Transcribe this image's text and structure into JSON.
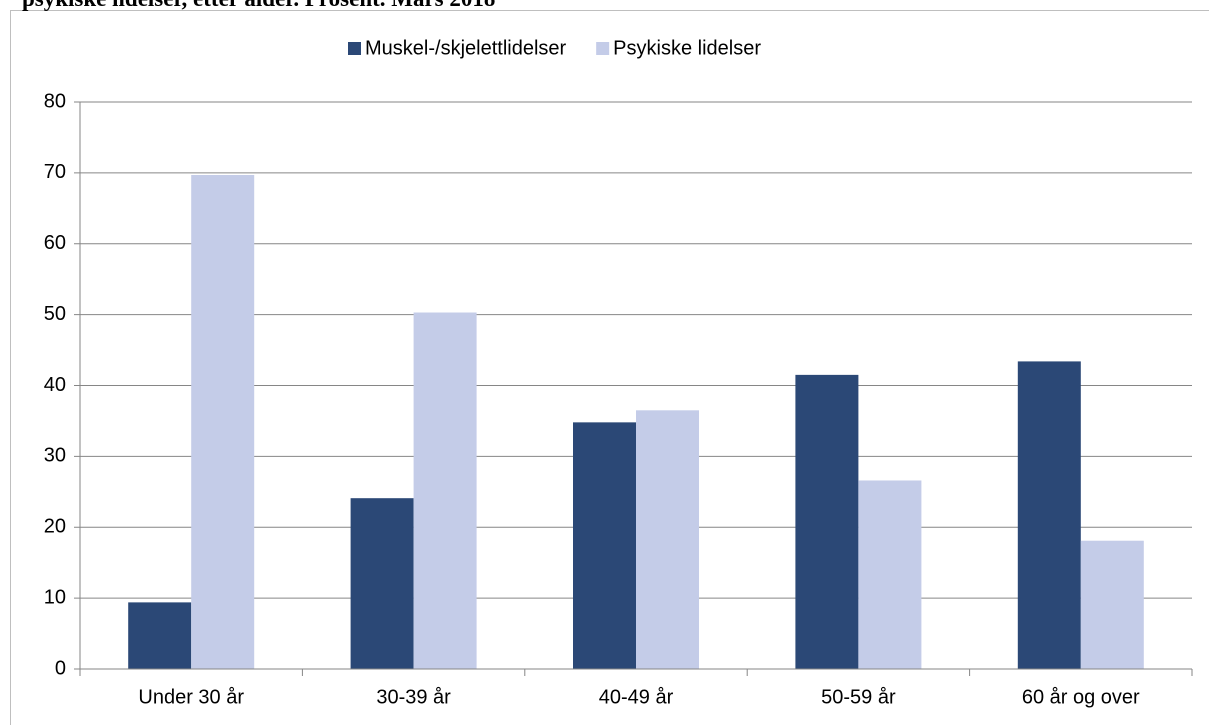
{
  "chart_data": {
    "type": "bar",
    "title": "psykiske lidelser, etter alder. Prosent. Mars 2018",
    "categories": [
      "Under 30 år",
      "30-39 år",
      "40-49 år",
      "50-59 år",
      "60 år og over"
    ],
    "series": [
      {
        "name": "Muskel-/skjelettlidelser",
        "color": "#2b4876",
        "values": [
          9.4,
          24.1,
          34.8,
          41.5,
          43.4
        ]
      },
      {
        "name": "Psykiske lidelser",
        "color": "#c4cce8",
        "values": [
          69.7,
          50.3,
          36.5,
          26.6,
          18.1
        ]
      }
    ],
    "ylim": [
      0,
      80
    ],
    "yticks": [
      0,
      10,
      20,
      30,
      40,
      50,
      60,
      70,
      80
    ],
    "grid": true,
    "legend": "top"
  }
}
